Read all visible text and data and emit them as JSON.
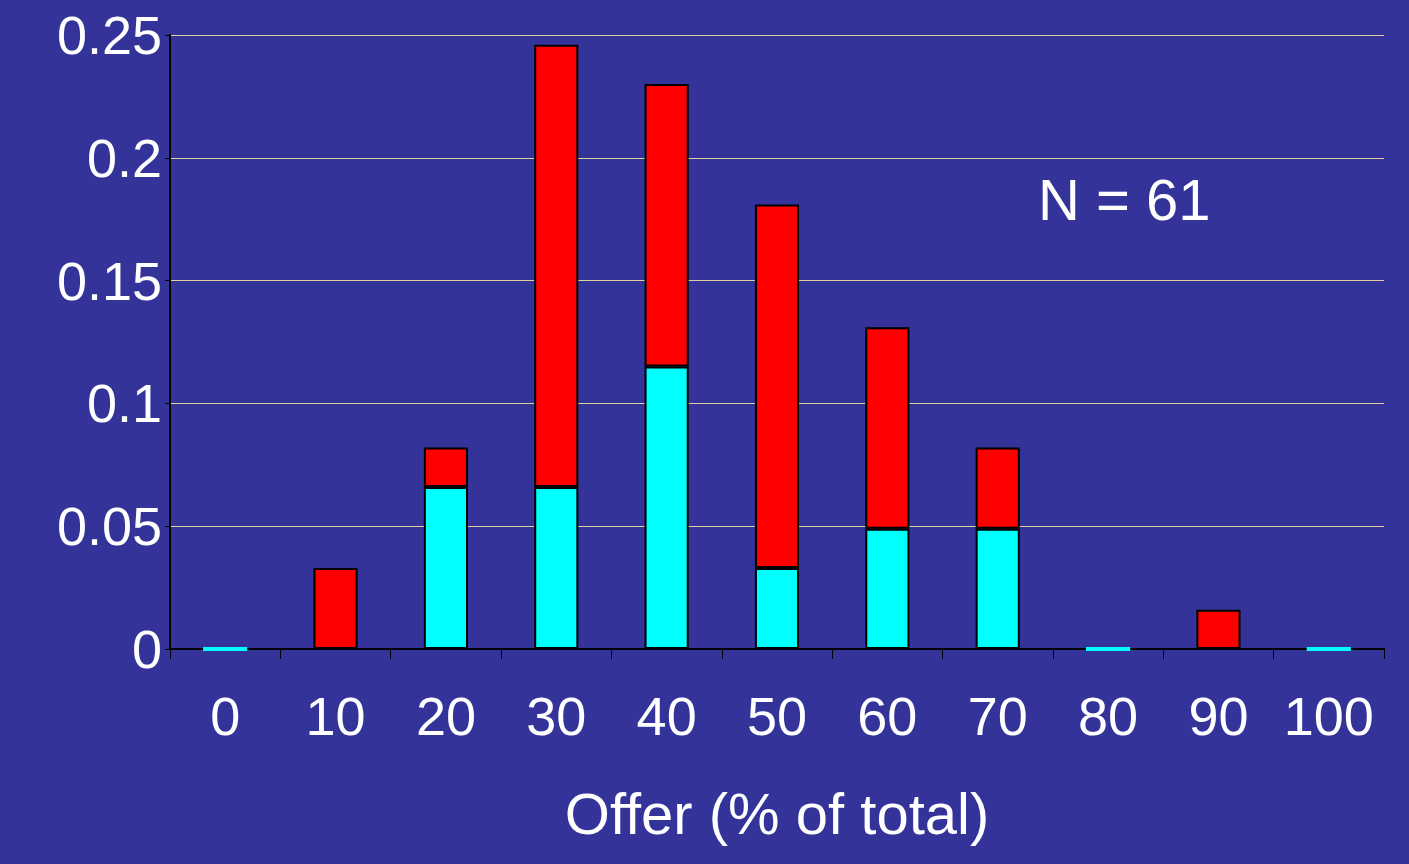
{
  "chart_data": {
    "type": "bar",
    "stacked": true,
    "xlabel": "Offer (% of total)",
    "categories": [
      "0",
      "10",
      "20",
      "30",
      "40",
      "50",
      "60",
      "70",
      "80",
      "90",
      "100"
    ],
    "series": [
      {
        "color": "#00ffff",
        "values": [
          0,
          null,
          0.066,
          0.066,
          0.115,
          0.033,
          0.049,
          0.049,
          0,
          null,
          0
        ]
      },
      {
        "color": "#ff0000",
        "values": [
          null,
          0.033,
          0.016,
          0.18,
          0.115,
          0.148,
          0.082,
          0.033,
          null,
          0.016,
          null
        ]
      }
    ],
    "ylim": [
      0,
      0.25
    ],
    "yticks": [
      0,
      0.05,
      0.1,
      0.15,
      0.2,
      0.25
    ],
    "grid": "y",
    "annotations": [
      "N = 61"
    ]
  }
}
